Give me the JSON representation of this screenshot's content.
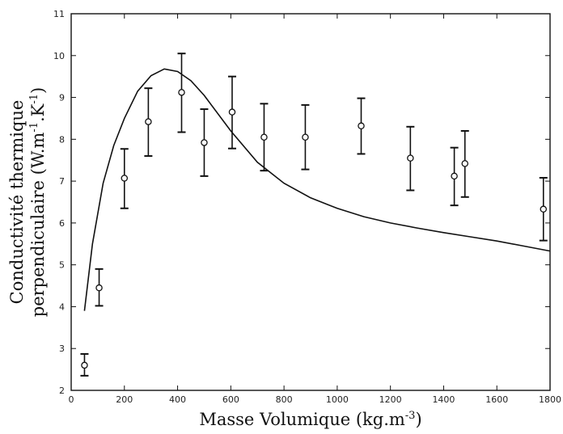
{
  "chart_data": {
    "type": "scatter",
    "xlabel": "Masse Volumique (kg.m",
    "xlabel_sup": "-3",
    "xlabel_end": ")",
    "ylabel_line1": "Conductivité thermique",
    "ylabel_line2_a": "perpendiculaire (W.m",
    "ylabel_line2_sup1": "-1",
    "ylabel_line2_b": ".K",
    "ylabel_line2_sup2": "-1",
    "ylabel_line2_c": ")",
    "xlim": [
      0,
      1800
    ],
    "ylim": [
      2,
      11
    ],
    "x_ticks": [
      0,
      200,
      400,
      600,
      800,
      1000,
      1200,
      1400,
      1600,
      1800
    ],
    "y_ticks": [
      2,
      3,
      4,
      5,
      6,
      7,
      8,
      9,
      10,
      11
    ],
    "grid": false,
    "series": [
      {
        "kind": "points_with_error_bars",
        "points": [
          {
            "x": 50,
            "y": 2.6,
            "err_low": 2.35,
            "err_high": 2.87
          },
          {
            "x": 105,
            "y": 4.45,
            "err_low": 4.02,
            "err_high": 4.9
          },
          {
            "x": 200,
            "y": 7.07,
            "err_low": 6.35,
            "err_high": 7.77
          },
          {
            "x": 290,
            "y": 8.42,
            "err_low": 7.6,
            "err_high": 9.22
          },
          {
            "x": 415,
            "y": 9.12,
            "err_low": 8.17,
            "err_high": 10.05
          },
          {
            "x": 500,
            "y": 7.92,
            "err_low": 7.12,
            "err_high": 8.72
          },
          {
            "x": 605,
            "y": 8.65,
            "err_low": 7.78,
            "err_high": 9.5
          },
          {
            "x": 725,
            "y": 8.05,
            "err_low": 7.25,
            "err_high": 8.85
          },
          {
            "x": 880,
            "y": 8.05,
            "err_low": 7.28,
            "err_high": 8.82
          },
          {
            "x": 1090,
            "y": 8.32,
            "err_low": 7.65,
            "err_high": 8.98
          },
          {
            "x": 1275,
            "y": 7.55,
            "err_low": 6.78,
            "err_high": 8.3
          },
          {
            "x": 1440,
            "y": 7.12,
            "err_low": 6.42,
            "err_high": 7.8
          },
          {
            "x": 1480,
            "y": 7.42,
            "err_low": 6.62,
            "err_high": 8.2
          },
          {
            "x": 1775,
            "y": 6.33,
            "err_low": 5.58,
            "err_high": 7.08
          }
        ]
      },
      {
        "kind": "line",
        "x": [
          50,
          80,
          120,
          160,
          200,
          250,
          300,
          350,
          400,
          450,
          500,
          600,
          700,
          800,
          900,
          1000,
          1100,
          1200,
          1300,
          1400,
          1500,
          1600,
          1700,
          1800
        ],
        "y": [
          3.9,
          5.5,
          6.95,
          7.85,
          8.5,
          9.15,
          9.52,
          9.68,
          9.62,
          9.4,
          9.05,
          8.2,
          7.45,
          6.95,
          6.6,
          6.35,
          6.15,
          6.0,
          5.88,
          5.77,
          5.67,
          5.57,
          5.45,
          5.33
        ]
      }
    ],
    "colors": {
      "ink": "#111111",
      "background": "#ffffff"
    }
  }
}
